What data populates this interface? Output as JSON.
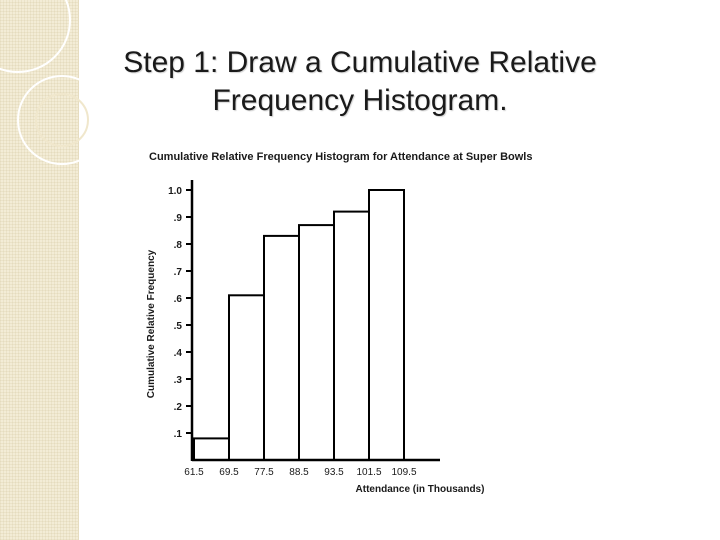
{
  "slide": {
    "title_line1": "Step 1: Draw a Cumulative Relative",
    "title_line2": "Frequency Histogram."
  },
  "chart_data": {
    "type": "bar",
    "title": "Cumulative Relative Frequency Histogram for Attendance at Super Bowls",
    "xlabel": "Attendance (in Thousands)",
    "ylabel": "Cumulative Relative Frequency",
    "bin_edges": [
      61.5,
      69.5,
      77.5,
      88.5,
      93.5,
      101.5,
      109.5
    ],
    "x_tick_labels": [
      "61.5",
      "69.5",
      "77.5",
      "88.5",
      "93.5",
      "101.5",
      "109.5"
    ],
    "values": [
      0.08,
      0.61,
      0.83,
      0.87,
      0.92,
      1.0
    ],
    "ylim": [
      0,
      1.0
    ],
    "y_ticks": [
      0.1,
      0.2,
      0.3,
      0.4,
      0.5,
      0.6,
      0.7,
      0.8,
      0.9,
      1.0
    ],
    "y_tick_labels": [
      ".1",
      ".2",
      ".3",
      ".4",
      ".5",
      ".6",
      ".7",
      ".8",
      ".9",
      "1.0"
    ],
    "grid": false,
    "bar_fill": "#ffffff",
    "bar_stroke": "#000000"
  }
}
